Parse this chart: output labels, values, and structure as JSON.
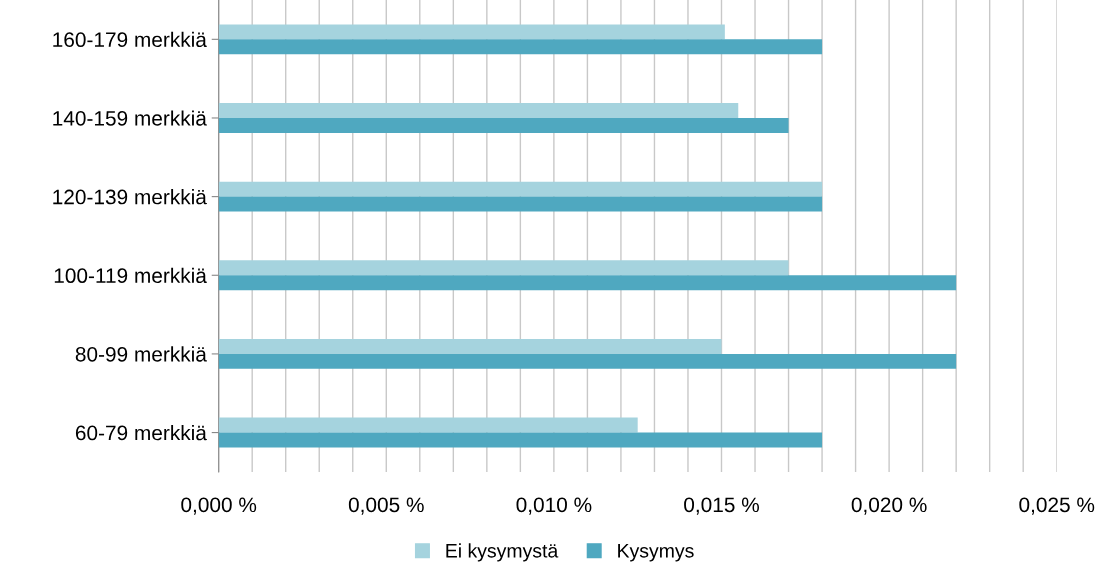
{
  "chart_data": {
    "type": "bar",
    "orientation": "horizontal",
    "categories": [
      "160-179 merkkiä",
      "140-159 merkkiä",
      "120-139 merkkiä",
      "100-119 merkkiä",
      "80-99 merkkiä",
      "60-79 merkkiä"
    ],
    "series": [
      {
        "name": "Ei kysymystä",
        "color": "#a5d3de",
        "values": [
          0.0151,
          0.0155,
          0.018,
          0.017,
          0.015,
          0.0125
        ]
      },
      {
        "name": "Kysymys",
        "color": "#4fa8c0",
        "values": [
          0.018,
          0.017,
          0.018,
          0.022,
          0.022,
          0.018
        ]
      }
    ],
    "xlim": [
      0,
      0.025
    ],
    "xticks": [
      {
        "value": 0,
        "label": "0,000 %"
      },
      {
        "value": 0.001,
        "label": null
      },
      {
        "value": 0.002,
        "label": null
      },
      {
        "value": 0.003,
        "label": null
      },
      {
        "value": 0.004,
        "label": null
      },
      {
        "value": 0.005,
        "label": "0,005 %"
      },
      {
        "value": 0.006,
        "label": null
      },
      {
        "value": 0.007,
        "label": null
      },
      {
        "value": 0.008,
        "label": null
      },
      {
        "value": 0.009,
        "label": null
      },
      {
        "value": 0.01,
        "label": "0,010 %"
      },
      {
        "value": 0.011,
        "label": null
      },
      {
        "value": 0.012,
        "label": null
      },
      {
        "value": 0.013,
        "label": null
      },
      {
        "value": 0.014,
        "label": null
      },
      {
        "value": 0.015,
        "label": "0,015 %"
      },
      {
        "value": 0.016,
        "label": null
      },
      {
        "value": 0.017,
        "label": null
      },
      {
        "value": 0.018,
        "label": null
      },
      {
        "value": 0.019,
        "label": null
      },
      {
        "value": 0.02,
        "label": "0,020 %"
      },
      {
        "value": 0.021,
        "label": null
      },
      {
        "value": 0.022,
        "label": null
      },
      {
        "value": 0.023,
        "label": null
      },
      {
        "value": 0.024,
        "label": null
      },
      {
        "value": 0.025,
        "label": "0,025 %"
      }
    ],
    "grid": "x",
    "legend": "bottom"
  }
}
